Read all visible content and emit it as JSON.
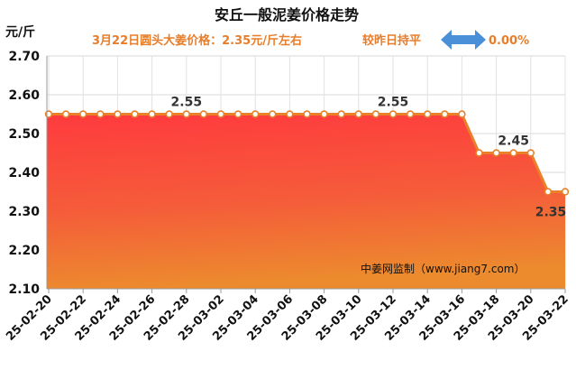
{
  "header": {
    "title": "安丘一般泥姜价格走势",
    "unit": "元/斤",
    "price_note": "3月22日圆头大姜价格：2.35元/斤左右",
    "change_note": "较昨日持平",
    "change_value": "0.00%",
    "change_icon": "left-right-arrow-icon",
    "accent_color": "#e87d2a",
    "arrow_color": "#4a90d9"
  },
  "watermark": "中姜网监制（www.jiang7.com）",
  "chart_data": {
    "type": "area",
    "title": "安丘一般泥姜价格走势",
    "ylabel": "元/斤",
    "xlabel": "",
    "ylim": [
      2.1,
      2.7
    ],
    "yticks": [
      "2.10",
      "2.20",
      "2.30",
      "2.40",
      "2.50",
      "2.60",
      "2.70"
    ],
    "grid": true,
    "x_tick_labels": [
      "25-02-20",
      "25-02-22",
      "25-02-24",
      "25-02-26",
      "25-02-28",
      "25-03-02",
      "25-03-04",
      "25-03-06",
      "25-03-08",
      "25-03-10",
      "25-03-12",
      "25-03-14",
      "25-03-16",
      "25-03-18",
      "25-03-20",
      "25-03-22"
    ],
    "x": [
      "25-02-20",
      "25-02-21",
      "25-02-22",
      "25-02-23",
      "25-02-24",
      "25-02-25",
      "25-02-26",
      "25-02-27",
      "25-02-28",
      "25-03-01",
      "25-03-02",
      "25-03-03",
      "25-03-04",
      "25-03-05",
      "25-03-06",
      "25-03-07",
      "25-03-08",
      "25-03-09",
      "25-03-10",
      "25-03-11",
      "25-03-12",
      "25-03-13",
      "25-03-14",
      "25-03-15",
      "25-03-16",
      "25-03-17",
      "25-03-18",
      "25-03-19",
      "25-03-20",
      "25-03-21",
      "25-03-22"
    ],
    "values": [
      2.55,
      2.55,
      2.55,
      2.55,
      2.55,
      2.55,
      2.55,
      2.55,
      2.55,
      2.55,
      2.55,
      2.55,
      2.55,
      2.55,
      2.55,
      2.55,
      2.55,
      2.55,
      2.55,
      2.55,
      2.55,
      2.55,
      2.55,
      2.55,
      2.55,
      2.45,
      2.45,
      2.45,
      2.45,
      2.35,
      2.35
    ],
    "data_labels": [
      {
        "x": "25-02-28",
        "text": "2.55"
      },
      {
        "x": "25-03-12",
        "text": "2.55"
      },
      {
        "x": "25-03-19",
        "text": "2.45"
      },
      {
        "x": "25-03-22",
        "text": "2.35"
      }
    ],
    "line_color": "#e8812a"
  }
}
